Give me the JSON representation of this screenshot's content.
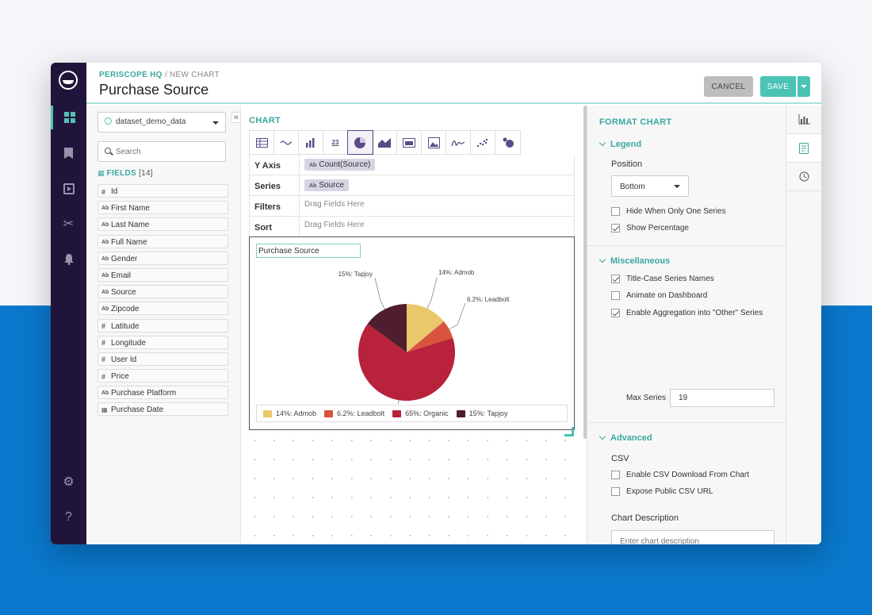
{
  "header": {
    "breadcrumb_home": "PERISCOPE HQ",
    "breadcrumb_sep": " / ",
    "breadcrumb_current": "NEW CHART",
    "title": "Purchase Source",
    "cancel_label": "CANCEL",
    "save_label": "SAVE"
  },
  "rail": {
    "items": [
      "dashboards-icon",
      "bookmark-icon",
      "report-icon",
      "scissors-icon",
      "bell-icon",
      "gear-icon",
      "help-icon"
    ],
    "help_glyph": "?"
  },
  "fields_panel": {
    "dataset": "dataset_demo_data",
    "search_placeholder": "Search",
    "fields_label": "FIELDS",
    "fields_count": "[14]",
    "collapse_glyph": "«",
    "fields": [
      {
        "type": "#",
        "name": "Id"
      },
      {
        "type": "Ab",
        "name": "First Name"
      },
      {
        "type": "Ab",
        "name": "Last Name"
      },
      {
        "type": "Ab",
        "name": "Full Name"
      },
      {
        "type": "Ab",
        "name": "Gender"
      },
      {
        "type": "Ab",
        "name": "Email"
      },
      {
        "type": "Ab",
        "name": "Source"
      },
      {
        "type": "Ab",
        "name": "Zipcode"
      },
      {
        "type": "#",
        "name": "Latitude"
      },
      {
        "type": "#",
        "name": "Longitude"
      },
      {
        "type": "#",
        "name": "User Id"
      },
      {
        "type": "#",
        "name": "Price"
      },
      {
        "type": "Ab",
        "name": "Purchase Platform"
      },
      {
        "type": "cal",
        "name": "Purchase Date"
      }
    ]
  },
  "chart_panel": {
    "header": "CHART",
    "chart_types": [
      "table-icon",
      "line-trend-icon",
      "bar-chart-icon",
      "number-icon",
      "pie-chart-icon",
      "area-chart-icon",
      "map-card-icon",
      "image-icon",
      "scribble-icon",
      "scatter-icon",
      "bubble-icon"
    ],
    "number_glyph": "23",
    "active_type": "pie-chart-icon",
    "shelves": {
      "y_axis_label": "Y Axis",
      "y_axis_type": "Ab",
      "y_axis_chip": "Count(Source)",
      "series_label": "Series",
      "series_type": "Ab",
      "series_chip": "Source",
      "filters_label": "Filters",
      "filters_placeholder": "Drag Fields Here",
      "sort_label": "Sort",
      "sort_placeholder": "Drag Fields Here"
    },
    "chart_title": "Purchase Source"
  },
  "chart_data": {
    "type": "pie",
    "title": "Purchase Source",
    "legend_position": "bottom",
    "slices": [
      {
        "label": "Admob",
        "value": 14,
        "display": "14%: Admob",
        "color": "#e8c86b"
      },
      {
        "label": "Leadbolt",
        "value": 6.2,
        "display": "6.2%: Leadbolt",
        "color": "#d9543e"
      },
      {
        "label": "Organic",
        "value": 65,
        "display": "65%: Organic",
        "color": "#b8223a"
      },
      {
        "label": "Tapjoy",
        "value": 15,
        "display": "15%: Tapjoy",
        "color": "#4e1e2e"
      }
    ]
  },
  "format_panel": {
    "header": "FORMAT CHART",
    "legend": {
      "title": "Legend",
      "position_label": "Position",
      "position_value": "Bottom",
      "hide_single_label": "Hide When Only One Series",
      "hide_single_checked": false,
      "show_pct_label": "Show Percentage",
      "show_pct_checked": true
    },
    "misc": {
      "title": "Miscellaneous",
      "title_case_label": "Title-Case Series Names",
      "title_case_checked": true,
      "animate_label": "Animate on Dashboard",
      "animate_checked": false,
      "aggregate_label": "Enable Aggregation into \"Other\" Series",
      "aggregate_checked": true,
      "max_series_label": "Max Series",
      "max_series_value": "19"
    },
    "advanced": {
      "title": "Advanced",
      "csv_label": "CSV",
      "csv_download_label": "Enable CSV Download From Chart",
      "csv_download_checked": false,
      "public_csv_label": "Expose Public CSV URL",
      "public_csv_checked": false,
      "description_label": "Chart Description",
      "description_placeholder": "Enter chart description"
    },
    "side_tabs": [
      "chart-settings-icon",
      "format-icon",
      "history-icon"
    ]
  }
}
